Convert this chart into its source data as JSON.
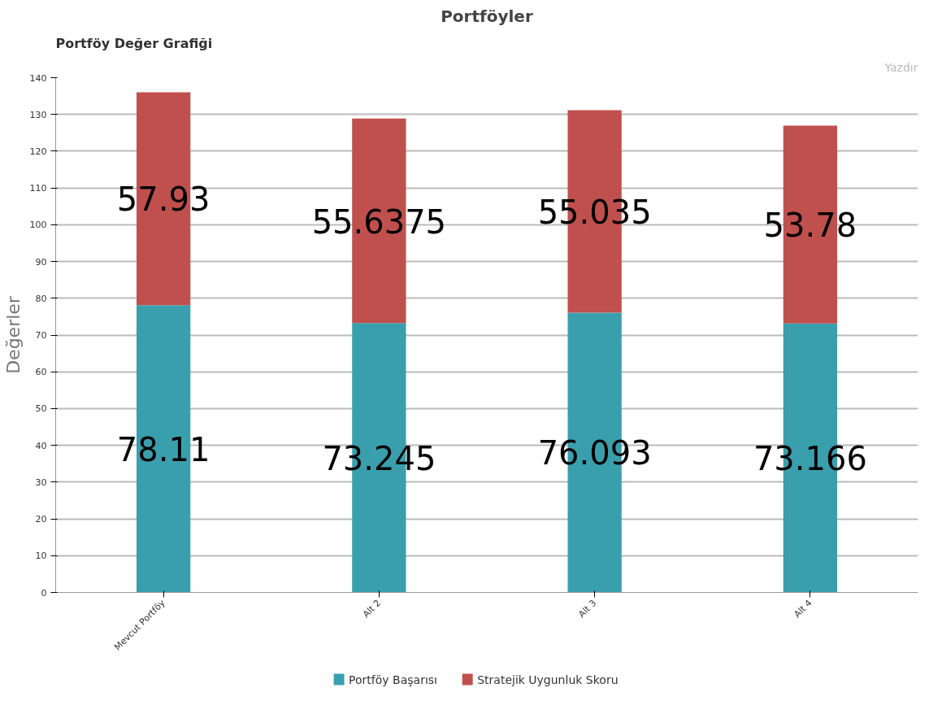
{
  "chart_data": {
    "type": "bar",
    "title": "Portföy Değer Grafiği",
    "subtitle": "Portföyler",
    "ylabel": "Değerler",
    "annotations": [
      "Yazdır"
    ],
    "categories": [
      "Mevcut Portföy",
      "Alt 2",
      "Alt 3",
      "Alt 4"
    ],
    "stacked": true,
    "series": [
      {
        "name": "Portföy Başarısı",
        "color": "#3a9fad",
        "values": [
          78.11,
          73.245,
          76.093,
          73.166
        ]
      },
      {
        "name": "Stratejik Uygunluk Skoru",
        "color": "#c0504d",
        "values": [
          57.93,
          55.6375,
          55.035,
          53.78
        ]
      }
    ],
    "data_labels": true,
    "ylim": [
      0,
      140
    ],
    "yticks": [
      0,
      10,
      20,
      30,
      40,
      50,
      60,
      70,
      80,
      90,
      100,
      110,
      120,
      130,
      140
    ],
    "grid": "y",
    "legend": "bottom"
  }
}
